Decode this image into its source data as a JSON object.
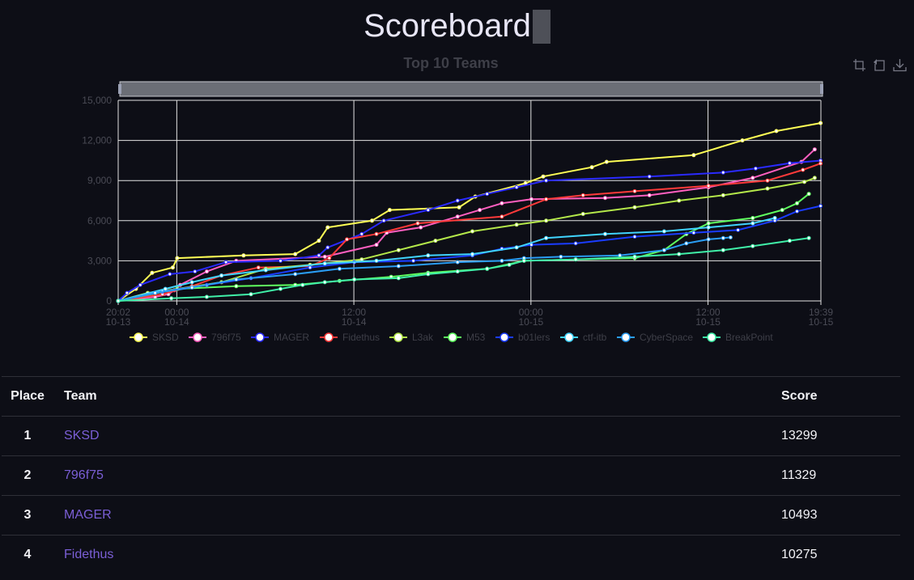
{
  "page": {
    "title": "Scoreboard"
  },
  "toolbox": {
    "icons": [
      "zoom-select-icon",
      "zoom-reset-icon",
      "download-icon"
    ]
  },
  "chart_data": {
    "type": "line",
    "title": "Top 10 Teams",
    "xlabel": "",
    "ylabel": "",
    "x_range": [
      "2024-10-13T20:02",
      "2024-10-15T19:39"
    ],
    "xlim": [
      0,
      47.62
    ],
    "ylim": [
      0,
      15000
    ],
    "y_ticks": [
      "0",
      "3,000",
      "6,000",
      "9,000",
      "12,000",
      "15,000"
    ],
    "x_ticks": [
      {
        "t": 0,
        "time": "20:02",
        "date": "10-13"
      },
      {
        "t": 3.97,
        "time": "00:00",
        "date": "10-14"
      },
      {
        "t": 15.97,
        "time": "12:00",
        "date": "10-14"
      },
      {
        "t": 27.97,
        "time": "00:00",
        "date": "10-15"
      },
      {
        "t": 39.97,
        "time": "12:00",
        "date": "10-15"
      },
      {
        "t": 47.62,
        "time": "19:39",
        "date": "10-15"
      }
    ],
    "grid": true,
    "legend": "bottom",
    "series": [
      {
        "name": "SKSD",
        "color": "#ffff55",
        "points": [
          [
            0,
            0
          ],
          [
            1.2,
            900
          ],
          [
            2.3,
            2100
          ],
          [
            3.7,
            2500
          ],
          [
            4,
            3200
          ],
          [
            8.5,
            3400
          ],
          [
            12,
            3500
          ],
          [
            13.6,
            4500
          ],
          [
            14.2,
            5500
          ],
          [
            17.2,
            6000
          ],
          [
            18.4,
            6800
          ],
          [
            23.1,
            7000
          ],
          [
            24.2,
            7800
          ],
          [
            27.6,
            8800
          ],
          [
            28.8,
            9300
          ],
          [
            32.1,
            10000
          ],
          [
            33.1,
            10400
          ],
          [
            39,
            10900
          ],
          [
            42.3,
            12000
          ],
          [
            44.6,
            12700
          ],
          [
            47.6,
            13299
          ]
        ]
      },
      {
        "name": "796f75",
        "color": "#ff5fc0",
        "points": [
          [
            0,
            0
          ],
          [
            2.5,
            300
          ],
          [
            3.4,
            500
          ],
          [
            3.8,
            800
          ],
          [
            4.2,
            1200
          ],
          [
            6,
            2200
          ],
          [
            8,
            3000
          ],
          [
            14,
            3300
          ],
          [
            17.5,
            4200
          ],
          [
            18.2,
            5100
          ],
          [
            20.5,
            5500
          ],
          [
            23,
            6300
          ],
          [
            24.5,
            6800
          ],
          [
            26,
            7300
          ],
          [
            28,
            7600
          ],
          [
            33,
            7700
          ],
          [
            36,
            7900
          ],
          [
            40,
            8500
          ],
          [
            43,
            9200
          ],
          [
            46.3,
            10400
          ],
          [
            47.2,
            11329
          ]
        ]
      },
      {
        "name": "MAGER",
        "color": "#2a2aff",
        "points": [
          [
            0,
            0
          ],
          [
            0.6,
            600
          ],
          [
            1.5,
            1200
          ],
          [
            3.5,
            2000
          ],
          [
            5.2,
            2200
          ],
          [
            7.3,
            2900
          ],
          [
            11,
            3000
          ],
          [
            13.6,
            3400
          ],
          [
            14.2,
            4000
          ],
          [
            16.5,
            5000
          ],
          [
            18,
            6000
          ],
          [
            21,
            6800
          ],
          [
            23,
            7500
          ],
          [
            25,
            8000
          ],
          [
            27,
            8500
          ],
          [
            29,
            9000
          ],
          [
            36,
            9300
          ],
          [
            41,
            9600
          ],
          [
            43.2,
            9900
          ],
          [
            45.5,
            10300
          ],
          [
            47.6,
            10493
          ]
        ]
      },
      {
        "name": "Fidethus",
        "color": "#ff3a3a",
        "points": [
          [
            0,
            0
          ],
          [
            3,
            500
          ],
          [
            5,
            1100
          ],
          [
            7,
            1900
          ],
          [
            9.5,
            2500
          ],
          [
            13,
            2600
          ],
          [
            14.3,
            3200
          ],
          [
            15.5,
            4600
          ],
          [
            17.5,
            5000
          ],
          [
            20.3,
            5800
          ],
          [
            26,
            6300
          ],
          [
            29,
            7600
          ],
          [
            31.5,
            7900
          ],
          [
            35,
            8200
          ],
          [
            40,
            8600
          ],
          [
            44,
            9000
          ],
          [
            46.4,
            9800
          ],
          [
            47.6,
            10275
          ]
        ]
      },
      {
        "name": "L3ak",
        "color": "#b4e84a",
        "points": [
          [
            0,
            0
          ],
          [
            2,
            600
          ],
          [
            4,
            900
          ],
          [
            7,
            1400
          ],
          [
            10,
            2400
          ],
          [
            13,
            2700
          ],
          [
            16.5,
            3100
          ],
          [
            19,
            3800
          ],
          [
            21.5,
            4500
          ],
          [
            24,
            5200
          ],
          [
            27,
            5700
          ],
          [
            29,
            6000
          ],
          [
            31.5,
            6500
          ],
          [
            35,
            7000
          ],
          [
            38,
            7500
          ],
          [
            41,
            7900
          ],
          [
            44,
            8400
          ],
          [
            46.5,
            8900
          ],
          [
            47.2,
            9200
          ]
        ]
      },
      {
        "name": "M53",
        "color": "#5fff5f",
        "points": [
          [
            0,
            0
          ],
          [
            4,
            900
          ],
          [
            8,
            1100
          ],
          [
            12,
            1200
          ],
          [
            15,
            1500
          ],
          [
            18.5,
            1800
          ],
          [
            21,
            2100
          ],
          [
            25,
            2400
          ],
          [
            27.5,
            3000
          ],
          [
            31,
            3100
          ],
          [
            35,
            3200
          ],
          [
            37,
            3800
          ],
          [
            38.5,
            5000
          ],
          [
            40,
            5800
          ],
          [
            43,
            6200
          ],
          [
            45,
            6800
          ],
          [
            46,
            7300
          ],
          [
            46.8,
            8000
          ]
        ]
      },
      {
        "name": "b01lers",
        "color": "#1a3cff",
        "points": [
          [
            0,
            0
          ],
          [
            3,
            700
          ],
          [
            6,
            1200
          ],
          [
            9,
            1700
          ],
          [
            13,
            2500
          ],
          [
            16,
            2900
          ],
          [
            20,
            3000
          ],
          [
            24,
            3400
          ],
          [
            26,
            3900
          ],
          [
            28,
            4200
          ],
          [
            31,
            4300
          ],
          [
            35,
            4800
          ],
          [
            39,
            5100
          ],
          [
            42,
            5300
          ],
          [
            44.5,
            6000
          ],
          [
            46,
            6700
          ],
          [
            47.6,
            7100
          ]
        ]
      },
      {
        "name": "ctf-itb",
        "color": "#40d4ff",
        "points": [
          [
            0,
            0
          ],
          [
            3.2,
            900
          ],
          [
            5,
            1400
          ],
          [
            7,
            1900
          ],
          [
            10,
            2300
          ],
          [
            14,
            2800
          ],
          [
            17.5,
            3000
          ],
          [
            21,
            3400
          ],
          [
            24,
            3500
          ],
          [
            27,
            4000
          ],
          [
            29,
            4700
          ],
          [
            33,
            5000
          ],
          [
            37,
            5200
          ],
          [
            40,
            5500
          ],
          [
            43,
            5800
          ],
          [
            44.5,
            6200
          ]
        ]
      },
      {
        "name": "CyberSpace",
        "color": "#2a9df4",
        "points": [
          [
            0,
            0
          ],
          [
            2.5,
            600
          ],
          [
            5,
            1000
          ],
          [
            8,
            1600
          ],
          [
            12,
            2000
          ],
          [
            15,
            2400
          ],
          [
            19,
            2600
          ],
          [
            23,
            2900
          ],
          [
            26,
            3000
          ],
          [
            27.5,
            3200
          ],
          [
            30,
            3300
          ],
          [
            34,
            3400
          ],
          [
            37,
            3800
          ],
          [
            38.5,
            4300
          ],
          [
            40,
            4600
          ],
          [
            41,
            4700
          ],
          [
            41.5,
            4750
          ]
        ]
      },
      {
        "name": "BreakPoint",
        "color": "#40f0a8",
        "points": [
          [
            0,
            0
          ],
          [
            3.6,
            200
          ],
          [
            6,
            300
          ],
          [
            9,
            500
          ],
          [
            11,
            900
          ],
          [
            12.5,
            1200
          ],
          [
            14,
            1400
          ],
          [
            16,
            1600
          ],
          [
            19,
            1700
          ],
          [
            21,
            2000
          ],
          [
            23,
            2200
          ],
          [
            25,
            2400
          ],
          [
            26.5,
            2700
          ],
          [
            27.5,
            3000
          ],
          [
            31,
            3100
          ],
          [
            35,
            3300
          ],
          [
            38,
            3500
          ],
          [
            41,
            3800
          ],
          [
            43,
            4100
          ],
          [
            45.5,
            4500
          ],
          [
            46.8,
            4700
          ]
        ]
      }
    ]
  },
  "table": {
    "headers": {
      "place": "Place",
      "team": "Team",
      "score": "Score"
    },
    "rows": [
      {
        "place": "1",
        "team": "SKSD",
        "score": "13299"
      },
      {
        "place": "2",
        "team": "796f75",
        "score": "11329"
      },
      {
        "place": "3",
        "team": "MAGER",
        "score": "10493"
      },
      {
        "place": "4",
        "team": "Fidethus",
        "score": "10275"
      }
    ]
  }
}
